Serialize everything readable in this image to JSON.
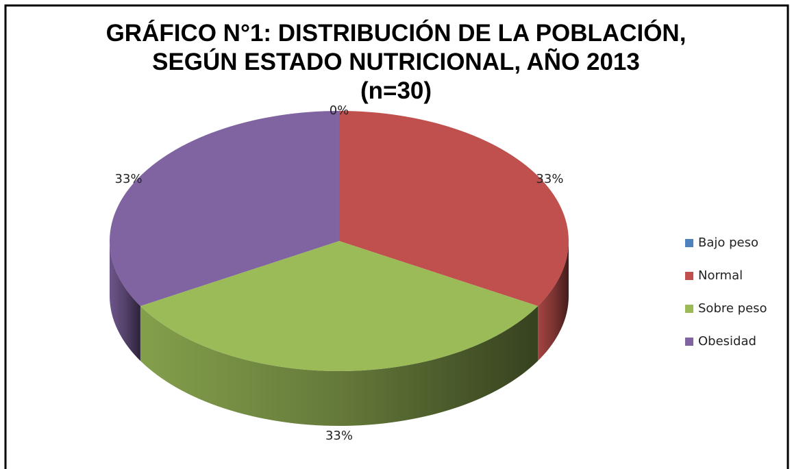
{
  "chart_data": {
    "type": "pie3d",
    "title": "GRÁFICO N°1: DISTRIBUCIÓN DE LA POBLACIÓN, SEGÚN ESTADO NUTRICIONAL, AÑO 2013",
    "subtitle": "(n=30)",
    "categories": [
      "Bajo peso",
      "Normal",
      "Sobre peso",
      "Obesidad"
    ],
    "values": [
      0,
      33,
      33,
      33
    ],
    "value_labels": [
      "0%",
      "33%",
      "33%",
      "33%"
    ],
    "colors": [
      "#4f81bd",
      "#c0504d",
      "#9bbb59",
      "#8064a2"
    ],
    "legend": "right"
  }
}
